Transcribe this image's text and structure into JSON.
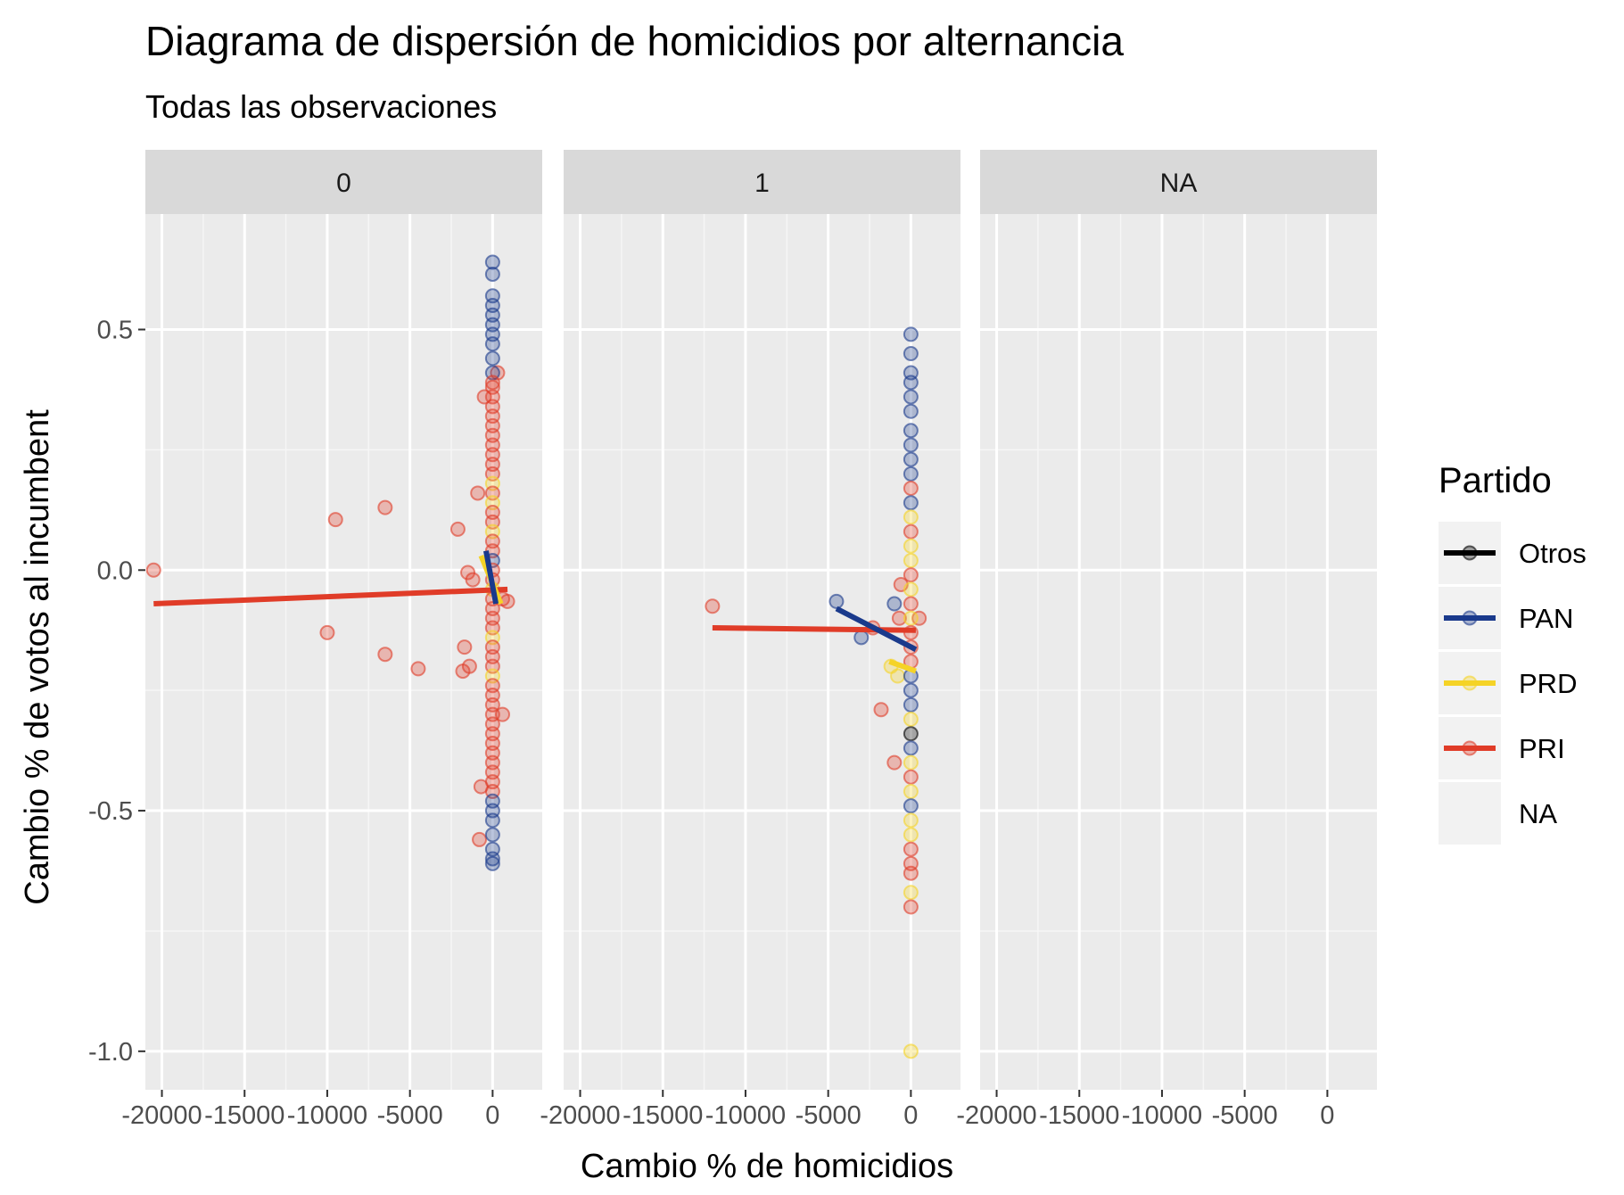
{
  "chart_data": {
    "type": "scatter",
    "title": "Diagrama de dispersión de homicidios por alternancia",
    "subtitle": "Todas las observaciones",
    "xlabel": "Cambio % de homicidios",
    "ylabel": "Cambio % de votos al incumbent",
    "xlim": [
      -21000,
      3000
    ],
    "ylim": [
      -1.08,
      0.74
    ],
    "x_ticks": [
      -20000,
      -15000,
      -10000,
      -5000,
      0
    ],
    "x_tick_labels": [
      "-20000",
      "-15000",
      "-10000",
      "-5000",
      "0"
    ],
    "y_ticks": [
      0.5,
      0.0,
      -0.5,
      -1.0
    ],
    "y_tick_labels": [
      "0.5",
      "0.0",
      "-0.5",
      "-1.0"
    ],
    "grid": true,
    "facet_label": "",
    "facets": [
      "0",
      "1",
      "NA"
    ],
    "legend": {
      "title": "Partido",
      "position": "right",
      "entries": [
        {
          "label": "Otros",
          "color": "#000000"
        },
        {
          "label": "PAN",
          "color": "#1a3a8c"
        },
        {
          "label": "PRD",
          "color": "#f5d327"
        },
        {
          "label": "PRI",
          "color": "#e03c28"
        },
        {
          "label": "NA",
          "color": ""
        }
      ]
    },
    "point_opacity": 0.3,
    "panels": [
      {
        "facet": "0",
        "points": [
          {
            "x": -20500,
            "y": 0.0,
            "party": "PRI"
          },
          {
            "x": -9500,
            "y": 0.105,
            "party": "PRI"
          },
          {
            "x": -6500,
            "y": 0.13,
            "party": "PRI"
          },
          {
            "x": -10000,
            "y": -0.13,
            "party": "PRI"
          },
          {
            "x": -6500,
            "y": -0.175,
            "party": "PRI"
          },
          {
            "x": -4500,
            "y": -0.205,
            "party": "PRI"
          },
          {
            "x": -2100,
            "y": 0.085,
            "party": "PRI"
          },
          {
            "x": -1700,
            "y": -0.16,
            "party": "PRI"
          },
          {
            "x": -1800,
            "y": -0.21,
            "party": "PRI"
          },
          {
            "x": -1400,
            "y": -0.2,
            "party": "PRI"
          },
          {
            "x": -1500,
            "y": -0.005,
            "party": "PRI"
          },
          {
            "x": -1200,
            "y": -0.02,
            "party": "PRI"
          },
          {
            "x": -900,
            "y": 0.16,
            "party": "PRI"
          },
          {
            "x": -700,
            "y": -0.45,
            "party": "PRI"
          },
          {
            "x": -800,
            "y": -0.56,
            "party": "PRI"
          },
          {
            "x": -500,
            "y": 0.36,
            "party": "PRI"
          },
          {
            "x": 300,
            "y": 0.41,
            "party": "PRI"
          },
          {
            "x": 600,
            "y": -0.06,
            "party": "PRI"
          },
          {
            "x": 900,
            "y": -0.065,
            "party": "PRI"
          },
          {
            "x": 600,
            "y": -0.3,
            "party": "PRI"
          },
          {
            "x": 0,
            "y": 0.64,
            "party": "PAN"
          },
          {
            "x": 0,
            "y": 0.615,
            "party": "PAN"
          },
          {
            "x": 0,
            "y": 0.57,
            "party": "PAN"
          },
          {
            "x": 0,
            "y": 0.55,
            "party": "PAN"
          },
          {
            "x": 0,
            "y": 0.53,
            "party": "PAN"
          },
          {
            "x": 0,
            "y": 0.51,
            "party": "PAN"
          },
          {
            "x": 0,
            "y": 0.49,
            "party": "PAN"
          },
          {
            "x": 0,
            "y": 0.47,
            "party": "PAN"
          },
          {
            "x": 0,
            "y": 0.44,
            "party": "PAN"
          },
          {
            "x": 0,
            "y": 0.41,
            "party": "PAN"
          },
          {
            "x": 0,
            "y": 0.39,
            "party": "PRI"
          },
          {
            "x": 0,
            "y": 0.38,
            "party": "PRI"
          },
          {
            "x": 0,
            "y": 0.36,
            "party": "PRI"
          },
          {
            "x": 0,
            "y": 0.34,
            "party": "PRI"
          },
          {
            "x": 0,
            "y": 0.32,
            "party": "PRI"
          },
          {
            "x": 0,
            "y": 0.3,
            "party": "PRI"
          },
          {
            "x": 0,
            "y": 0.28,
            "party": "PRI"
          },
          {
            "x": 0,
            "y": 0.26,
            "party": "PRI"
          },
          {
            "x": 0,
            "y": 0.24,
            "party": "PRI"
          },
          {
            "x": 0,
            "y": 0.22,
            "party": "PRI"
          },
          {
            "x": 0,
            "y": 0.2,
            "party": "PRI"
          },
          {
            "x": 0,
            "y": 0.18,
            "party": "PRD"
          },
          {
            "x": 0,
            "y": 0.16,
            "party": "PRI"
          },
          {
            "x": 0,
            "y": 0.14,
            "party": "PRD"
          },
          {
            "x": 0,
            "y": 0.12,
            "party": "PRI"
          },
          {
            "x": 0,
            "y": 0.1,
            "party": "PRI"
          },
          {
            "x": 0,
            "y": 0.08,
            "party": "PRD"
          },
          {
            "x": 0,
            "y": 0.06,
            "party": "PRI"
          },
          {
            "x": 0,
            "y": 0.04,
            "party": "PRI"
          },
          {
            "x": 0,
            "y": 0.02,
            "party": "PAN"
          },
          {
            "x": 0,
            "y": 0.0,
            "party": "PRI"
          },
          {
            "x": 0,
            "y": -0.02,
            "party": "PRI"
          },
          {
            "x": 0,
            "y": -0.04,
            "party": "PRD"
          },
          {
            "x": 0,
            "y": -0.06,
            "party": "PRI"
          },
          {
            "x": 0,
            "y": -0.08,
            "party": "PRI"
          },
          {
            "x": 0,
            "y": -0.1,
            "party": "PRI"
          },
          {
            "x": 0,
            "y": -0.12,
            "party": "PRI"
          },
          {
            "x": 0,
            "y": -0.14,
            "party": "PRD"
          },
          {
            "x": 0,
            "y": -0.16,
            "party": "PRI"
          },
          {
            "x": 0,
            "y": -0.18,
            "party": "PRI"
          },
          {
            "x": 0,
            "y": -0.2,
            "party": "PRI"
          },
          {
            "x": 0,
            "y": -0.22,
            "party": "PRD"
          },
          {
            "x": 0,
            "y": -0.24,
            "party": "PRI"
          },
          {
            "x": 0,
            "y": -0.26,
            "party": "PRI"
          },
          {
            "x": 0,
            "y": -0.28,
            "party": "PRI"
          },
          {
            "x": 0,
            "y": -0.3,
            "party": "PRI"
          },
          {
            "x": 0,
            "y": -0.32,
            "party": "PRI"
          },
          {
            "x": 0,
            "y": -0.34,
            "party": "PRI"
          },
          {
            "x": 0,
            "y": -0.36,
            "party": "PRI"
          },
          {
            "x": 0,
            "y": -0.38,
            "party": "PRI"
          },
          {
            "x": 0,
            "y": -0.4,
            "party": "PRI"
          },
          {
            "x": 0,
            "y": -0.42,
            "party": "PRI"
          },
          {
            "x": 0,
            "y": -0.44,
            "party": "PRI"
          },
          {
            "x": 0,
            "y": -0.46,
            "party": "PRI"
          },
          {
            "x": 0,
            "y": -0.48,
            "party": "PAN"
          },
          {
            "x": 0,
            "y": -0.5,
            "party": "PAN"
          },
          {
            "x": 0,
            "y": -0.52,
            "party": "PAN"
          },
          {
            "x": 0,
            "y": -0.55,
            "party": "PAN"
          },
          {
            "x": 0,
            "y": -0.58,
            "party": "PAN"
          },
          {
            "x": 0,
            "y": -0.6,
            "party": "PAN"
          },
          {
            "x": 0,
            "y": -0.61,
            "party": "PAN"
          }
        ],
        "lines": [
          {
            "party": "PRI",
            "x1": -20500,
            "y1": -0.07,
            "x2": 900,
            "y2": -0.04
          },
          {
            "party": "PRD",
            "x1": -700,
            "y1": 0.03,
            "x2": 500,
            "y2": -0.07
          },
          {
            "party": "PAN",
            "x1": -400,
            "y1": 0.04,
            "x2": 200,
            "y2": -0.07
          }
        ]
      },
      {
        "facet": "1",
        "points": [
          {
            "x": -12000,
            "y": -0.075,
            "party": "PRI"
          },
          {
            "x": -4500,
            "y": -0.065,
            "party": "PAN"
          },
          {
            "x": -3000,
            "y": -0.14,
            "party": "PAN"
          },
          {
            "x": -2300,
            "y": -0.12,
            "party": "PRI"
          },
          {
            "x": -1800,
            "y": -0.29,
            "party": "PRI"
          },
          {
            "x": -1000,
            "y": -0.07,
            "party": "PAN"
          },
          {
            "x": -1200,
            "y": -0.2,
            "party": "PRD"
          },
          {
            "x": -800,
            "y": -0.22,
            "party": "PRD"
          },
          {
            "x": -1000,
            "y": -0.4,
            "party": "PRI"
          },
          {
            "x": -700,
            "y": -0.1,
            "party": "PRI"
          },
          {
            "x": -600,
            "y": -0.03,
            "party": "PRI"
          },
          {
            "x": 500,
            "y": -0.1,
            "party": "PRI"
          },
          {
            "x": 0,
            "y": 0.49,
            "party": "PAN"
          },
          {
            "x": 0,
            "y": 0.45,
            "party": "PAN"
          },
          {
            "x": 0,
            "y": 0.41,
            "party": "PAN"
          },
          {
            "x": 0,
            "y": 0.39,
            "party": "PAN"
          },
          {
            "x": 0,
            "y": 0.36,
            "party": "PAN"
          },
          {
            "x": 0,
            "y": 0.33,
            "party": "PAN"
          },
          {
            "x": 0,
            "y": 0.29,
            "party": "PAN"
          },
          {
            "x": 0,
            "y": 0.26,
            "party": "PAN"
          },
          {
            "x": 0,
            "y": 0.23,
            "party": "PAN"
          },
          {
            "x": 0,
            "y": 0.2,
            "party": "PAN"
          },
          {
            "x": 0,
            "y": 0.17,
            "party": "PRI"
          },
          {
            "x": 0,
            "y": 0.14,
            "party": "PAN"
          },
          {
            "x": 0,
            "y": 0.11,
            "party": "PRD"
          },
          {
            "x": 0,
            "y": 0.08,
            "party": "PRI"
          },
          {
            "x": 0,
            "y": 0.05,
            "party": "PRD"
          },
          {
            "x": 0,
            "y": 0.02,
            "party": "PRD"
          },
          {
            "x": 0,
            "y": -0.01,
            "party": "PRI"
          },
          {
            "x": 0,
            "y": -0.04,
            "party": "PRD"
          },
          {
            "x": 0,
            "y": -0.07,
            "party": "PRI"
          },
          {
            "x": 0,
            "y": -0.1,
            "party": "PRD"
          },
          {
            "x": 0,
            "y": -0.13,
            "party": "PRI"
          },
          {
            "x": 0,
            "y": -0.16,
            "party": "PRI"
          },
          {
            "x": 0,
            "y": -0.19,
            "party": "PRI"
          },
          {
            "x": 0,
            "y": -0.22,
            "party": "PAN"
          },
          {
            "x": 0,
            "y": -0.25,
            "party": "PAN"
          },
          {
            "x": 0,
            "y": -0.28,
            "party": "PAN"
          },
          {
            "x": 0,
            "y": -0.31,
            "party": "PRD"
          },
          {
            "x": 0,
            "y": -0.34,
            "party": "Otros"
          },
          {
            "x": 0,
            "y": -0.37,
            "party": "PAN"
          },
          {
            "x": 0,
            "y": -0.4,
            "party": "PRD"
          },
          {
            "x": 0,
            "y": -0.43,
            "party": "PRI"
          },
          {
            "x": 0,
            "y": -0.46,
            "party": "PRD"
          },
          {
            "x": 0,
            "y": -0.49,
            "party": "PAN"
          },
          {
            "x": 0,
            "y": -0.52,
            "party": "PRD"
          },
          {
            "x": 0,
            "y": -0.55,
            "party": "PRD"
          },
          {
            "x": 0,
            "y": -0.58,
            "party": "PRI"
          },
          {
            "x": 0,
            "y": -0.61,
            "party": "PRI"
          },
          {
            "x": 0,
            "y": -0.63,
            "party": "PRI"
          },
          {
            "x": 0,
            "y": -0.67,
            "party": "PRD"
          },
          {
            "x": 0,
            "y": -0.7,
            "party": "PRI"
          },
          {
            "x": 0,
            "y": -1.0,
            "party": "PRD"
          }
        ],
        "lines": [
          {
            "party": "PRI",
            "x1": -12000,
            "y1": -0.12,
            "x2": 300,
            "y2": -0.125
          },
          {
            "party": "PAN",
            "x1": -4500,
            "y1": -0.08,
            "x2": 300,
            "y2": -0.165
          },
          {
            "party": "PRD",
            "x1": -1300,
            "y1": -0.19,
            "x2": 300,
            "y2": -0.21
          }
        ]
      },
      {
        "facet": "NA",
        "points": [],
        "lines": []
      }
    ]
  }
}
